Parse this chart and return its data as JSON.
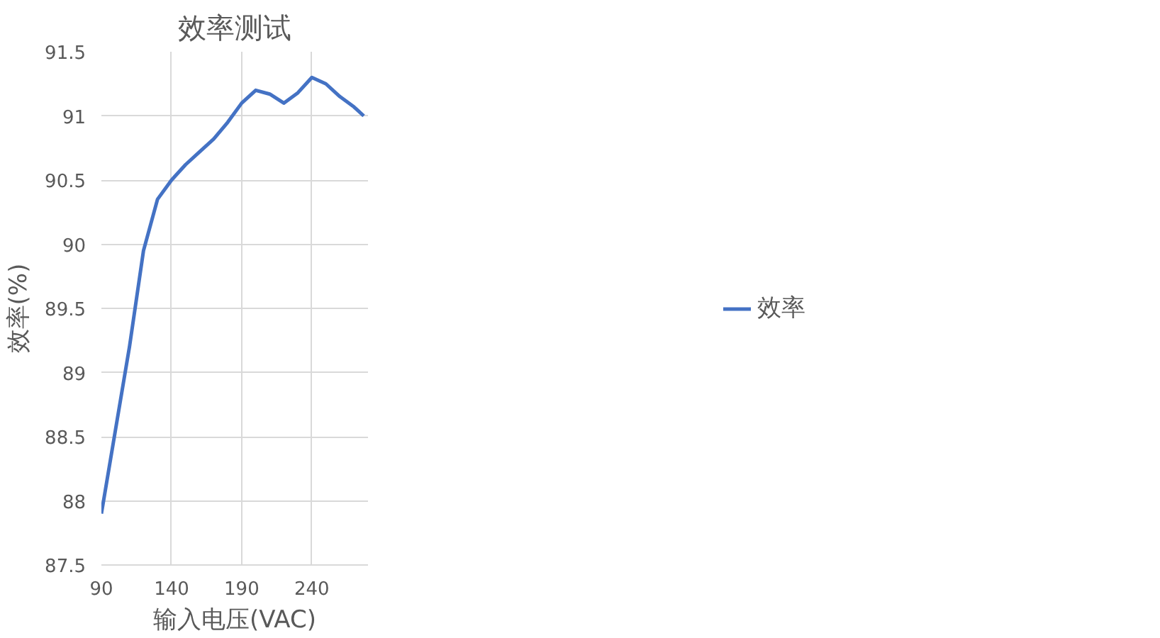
{
  "chart_data": {
    "type": "line",
    "title": "效率测试",
    "xlabel": "输入电压(VAC)",
    "ylabel": "效率(%)",
    "x": [
      90,
      100,
      110,
      120,
      130,
      140,
      150,
      160,
      170,
      180,
      190,
      200,
      210,
      220,
      230,
      240,
      250,
      260,
      270,
      277
    ],
    "series": [
      {
        "name": "效率",
        "color": "#4472c4",
        "values": [
          87.9,
          88.55,
          89.2,
          89.95,
          90.35,
          90.5,
          90.62,
          90.72,
          90.82,
          90.95,
          91.1,
          91.2,
          91.17,
          91.1,
          91.18,
          91.3,
          91.25,
          91.15,
          91.07,
          91.0
        ]
      }
    ],
    "xlim": [
      90,
      280
    ],
    "xticks": [
      90,
      140,
      190,
      240
    ],
    "ylim": [
      87.5,
      91.5
    ],
    "yticks": [
      87.5,
      88,
      88.5,
      89,
      89.5,
      90,
      90.5,
      91,
      91.5
    ],
    "grid": true,
    "legend": "right",
    "line_style": "solid",
    "marker": "none"
  }
}
